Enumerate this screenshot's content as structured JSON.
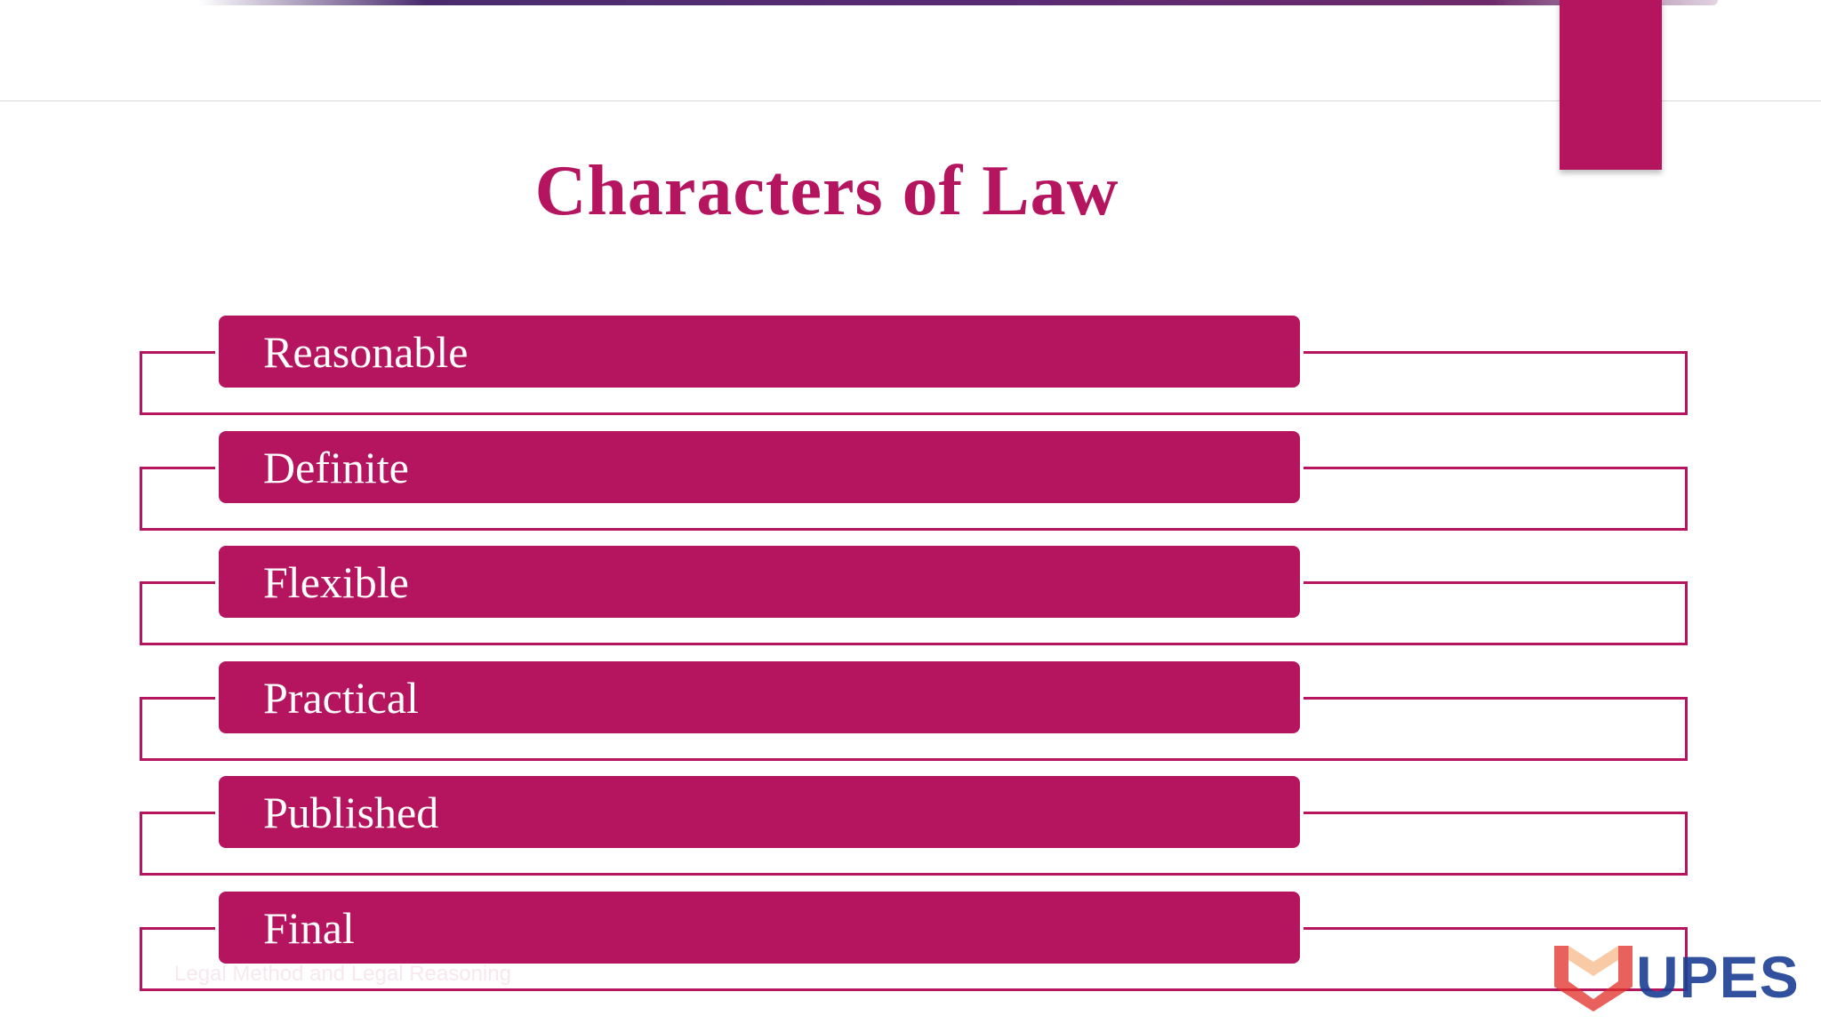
{
  "slide": {
    "title": "Characters of Law",
    "items": [
      {
        "label": "Reasonable"
      },
      {
        "label": "Definite"
      },
      {
        "label": "Flexible"
      },
      {
        "label": "Practical"
      },
      {
        "label": "Published"
      },
      {
        "label": "Final"
      }
    ],
    "footer": "Legal Method and Legal Reasoning",
    "logo_text": "UPES"
  },
  "colors": {
    "accent": "#b5155f",
    "logo_blue": "#1b3f94",
    "logo_red": "#e0312c"
  },
  "icons": {
    "logo_mark": "upes-shield-icon"
  }
}
